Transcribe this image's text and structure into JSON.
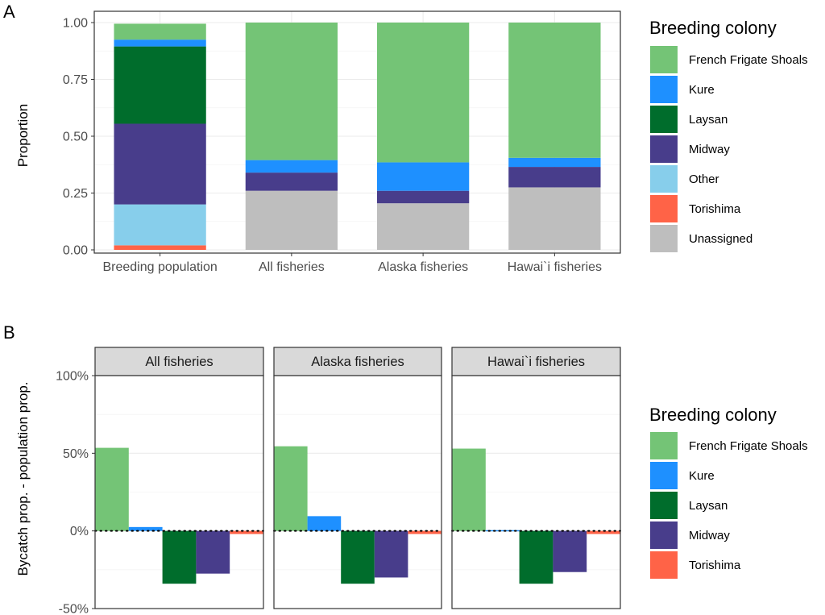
{
  "colors": {
    "French Frigate Shoals": "#74C476",
    "Kure": "#1E90FF",
    "Laysan": "#006D2C",
    "Midway": "#483D8B",
    "Other": "#87CEEB",
    "Torishima": "#FF6347",
    "Unassigned": "#BEBEBE"
  },
  "chart_data": [
    {
      "type": "bar",
      "stacked": true,
      "panel_tag": "A",
      "categories": [
        "Breeding population",
        "All fisheries",
        "Alaska fisheries",
        "Hawai`i fisheries"
      ],
      "ylabel": "Proportion",
      "xlabel": "",
      "ylim": [
        0,
        1
      ],
      "yticks": [
        "0.00",
        "0.25",
        "0.50",
        "0.75",
        "1.00"
      ],
      "grid": true,
      "legend_title": "Breeding colony",
      "legend_position": "right",
      "series": [
        {
          "name": "Torishima",
          "values": [
            0.02,
            0,
            0,
            0
          ]
        },
        {
          "name": "Other",
          "values": [
            0.18,
            0,
            0,
            0
          ]
        },
        {
          "name": "Unassigned",
          "values": [
            0,
            0.26,
            0.205,
            0.275
          ]
        },
        {
          "name": "Midway",
          "values": [
            0.355,
            0.08,
            0.055,
            0.09
          ]
        },
        {
          "name": "Laysan",
          "values": [
            0.34,
            0,
            0,
            0
          ]
        },
        {
          "name": "Kure",
          "values": [
            0.03,
            0.055,
            0.125,
            0.04
          ]
        },
        {
          "name": "French Frigate Shoals",
          "values": [
            0.07,
            0.605,
            0.615,
            0.595
          ]
        }
      ],
      "legend_order": [
        "French Frigate Shoals",
        "Kure",
        "Laysan",
        "Midway",
        "Other",
        "Torishima",
        "Unassigned"
      ]
    },
    {
      "type": "bar",
      "faceted": true,
      "panel_tag": "B",
      "facets": [
        "All fisheries",
        "Alaska fisheries",
        "Hawai`i fisheries"
      ],
      "categories": [
        "French Frigate Shoals",
        "Kure",
        "Laysan",
        "Midway",
        "Torishima"
      ],
      "ylabel": "Bycatch prop. - population prop.",
      "xlabel": "",
      "ylim": [
        -0.5,
        1.0
      ],
      "yticks": [
        "-50%",
        "0%",
        "50%",
        "100%"
      ],
      "reference_line": 0,
      "grid": true,
      "legend_title": "Breeding colony",
      "legend_position": "right",
      "values": [
        [
          0.535,
          0.025,
          -0.34,
          -0.275,
          -0.02
        ],
        [
          0.545,
          0.095,
          -0.34,
          -0.3,
          -0.02
        ],
        [
          0.53,
          0.005,
          -0.34,
          -0.265,
          -0.02
        ]
      ]
    }
  ]
}
